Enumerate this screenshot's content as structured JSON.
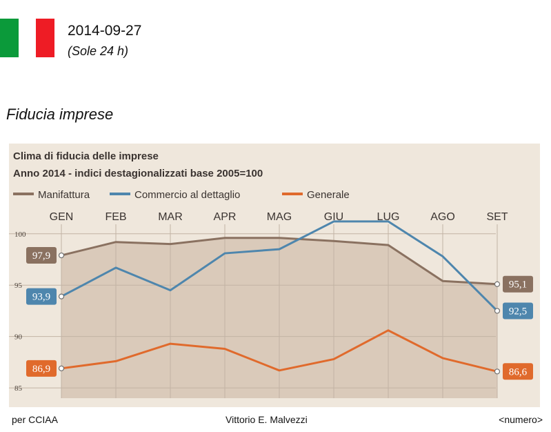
{
  "header": {
    "date": "2014-09-27",
    "source": "(Sole 24 h)",
    "flag_colors": [
      "#0b9a3a",
      "#ffffff",
      "#ee1c25"
    ]
  },
  "slide": {
    "title": "Fiducia imprese"
  },
  "footer": {
    "left": "per CCIAA",
    "center": "Vittorio E. Malvezzi",
    "right": "<numero>"
  },
  "chart_data": {
    "type": "line",
    "title": "Clima di fiducia delle imprese",
    "subtitle": "Anno 2014 - indici destagionalizzati base 2005=100",
    "categories": [
      "GEN",
      "FEB",
      "MAR",
      "APR",
      "MAG",
      "GIU",
      "LUG",
      "AGO",
      "SET"
    ],
    "ylim": [
      84,
      102
    ],
    "yticks": [
      85,
      90,
      95,
      100
    ],
    "legend_position": "top",
    "series": [
      {
        "name": "Manifattura",
        "color": "#8a7160",
        "values": [
          97.9,
          99.2,
          99.0,
          99.6,
          99.6,
          99.3,
          98.9,
          95.4,
          95.1
        ],
        "start_label": "97,9",
        "end_label": "95,1"
      },
      {
        "name": "Commercio al dettaglio",
        "color": "#4e86ad",
        "values": [
          93.9,
          96.7,
          94.5,
          98.1,
          98.5,
          101.2,
          101.2,
          97.8,
          92.5
        ],
        "start_label": "93,9",
        "end_label": "92,5"
      },
      {
        "name": "Generale",
        "color": "#e06a2c",
        "values": [
          86.9,
          87.6,
          89.3,
          88.8,
          86.7,
          87.8,
          90.6,
          87.9,
          86.6
        ],
        "start_label": "86,9",
        "end_label": "86,6"
      }
    ]
  }
}
